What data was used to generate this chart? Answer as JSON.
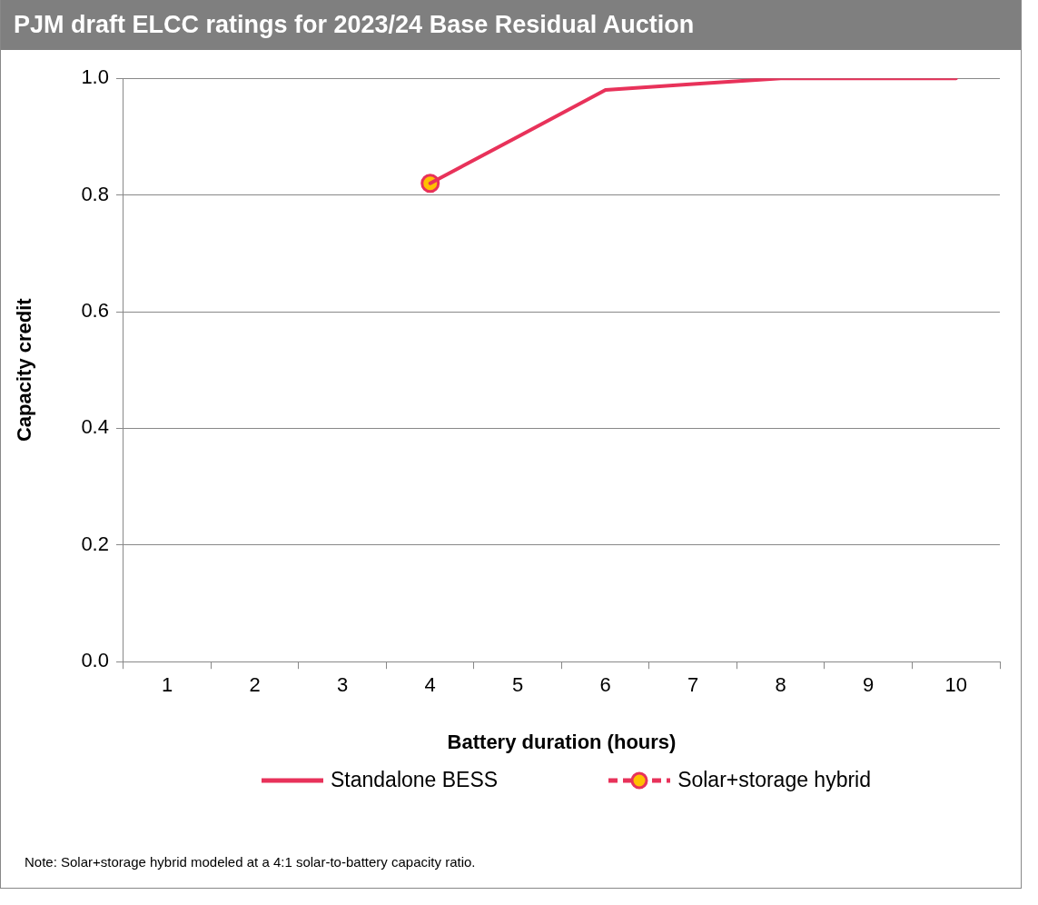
{
  "chart_data": {
    "type": "line",
    "title": "PJM draft ELCC ratings for 2023/24 Base Residual Auction",
    "xlabel": "Battery duration (hours)",
    "ylabel": "Capacity credit",
    "categories": [
      "1",
      "2",
      "3",
      "4",
      "5",
      "6",
      "7",
      "8",
      "9",
      "10"
    ],
    "series": [
      {
        "name": "Standalone BESS",
        "color": "#e8325a",
        "marker": "none",
        "line_style": "solid",
        "values": [
          null,
          null,
          null,
          0.82,
          0.9,
          0.98,
          0.99,
          1.0,
          1.0,
          1.0
        ]
      },
      {
        "name": "Solar+storage hybrid",
        "color": "#e8325a",
        "marker": "circle",
        "line_style": "dashed",
        "values": [
          null,
          null,
          null,
          0.82,
          null,
          null,
          null,
          null,
          null,
          null
        ]
      }
    ],
    "ylim": [
      0,
      1
    ],
    "yticks": [
      {
        "value": 0,
        "label": "0.0"
      },
      {
        "value": 0.2,
        "label": "0.2"
      },
      {
        "value": 0.4,
        "label": "0.4"
      },
      {
        "value": 0.6,
        "label": "0.6"
      },
      {
        "value": 0.8,
        "label": "0.8"
      },
      {
        "value": 1,
        "label": "1.0"
      }
    ],
    "grid": "y",
    "legend": "bottom",
    "annotations": [
      "Note: Solar+storage hybrid modeled at a 4:1 solar-to-battery capacity ratio."
    ]
  }
}
